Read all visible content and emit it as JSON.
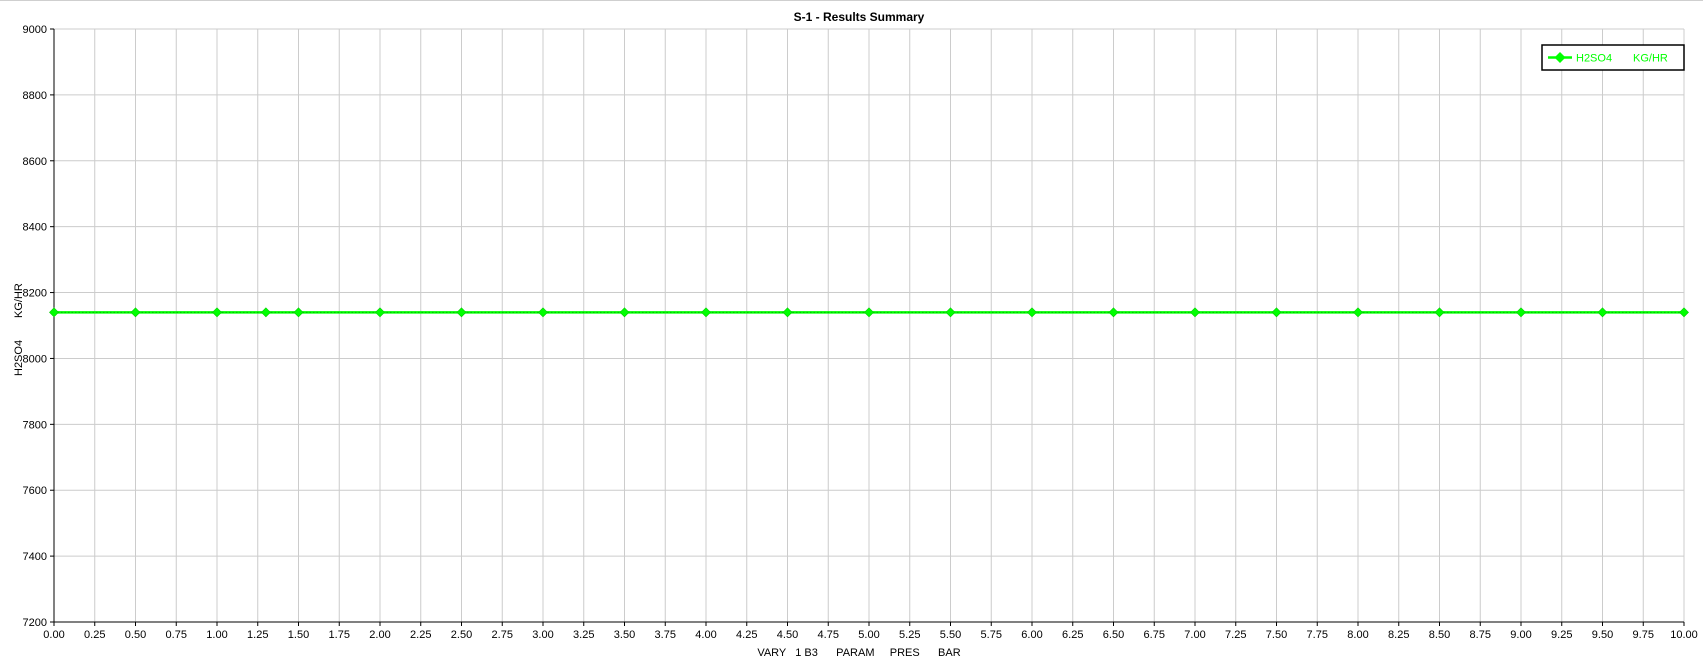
{
  "chart_data": {
    "type": "line",
    "title": "S-1 - Results Summary",
    "xlabel": "VARY   1 B3      PARAM     PRES      BAR",
    "ylabel_parts": [
      "H2SO4",
      "KG/HR"
    ],
    "xlim": [
      0,
      10
    ],
    "ylim": [
      7200,
      9000
    ],
    "x_ticks": [
      "0.00",
      "0.25",
      "0.50",
      "0.75",
      "1.00",
      "1.25",
      "1.50",
      "1.75",
      "2.00",
      "2.25",
      "2.50",
      "2.75",
      "3.00",
      "3.25",
      "3.50",
      "3.75",
      "4.00",
      "4.25",
      "4.50",
      "4.75",
      "5.00",
      "5.25",
      "5.50",
      "5.75",
      "6.00",
      "6.25",
      "6.50",
      "6.75",
      "7.00",
      "7.25",
      "7.50",
      "7.75",
      "8.00",
      "8.25",
      "8.50",
      "8.75",
      "9.00",
      "9.25",
      "9.50",
      "9.75",
      "10.00"
    ],
    "y_ticks": [
      "7200",
      "7400",
      "7600",
      "7800",
      "8000",
      "8200",
      "8400",
      "8600",
      "8800",
      "9000"
    ],
    "grid": true,
    "legend_position": "top-right",
    "series": [
      {
        "name": "H2SO4",
        "unit": "KG/HR",
        "color": "#00ff00",
        "x": [
          0.0,
          0.5,
          1.0,
          1.3,
          1.5,
          2.0,
          2.5,
          3.0,
          3.5,
          4.0,
          4.5,
          5.0,
          5.5,
          6.0,
          6.5,
          7.0,
          7.5,
          8.0,
          8.5,
          9.0,
          9.5,
          10.0
        ],
        "y": [
          8140,
          8140,
          8140,
          8140,
          8140,
          8140,
          8140,
          8140,
          8140,
          8140,
          8140,
          8140,
          8140,
          8140,
          8140,
          8140,
          8140,
          8140,
          8140,
          8140,
          8140,
          8140
        ]
      }
    ]
  }
}
